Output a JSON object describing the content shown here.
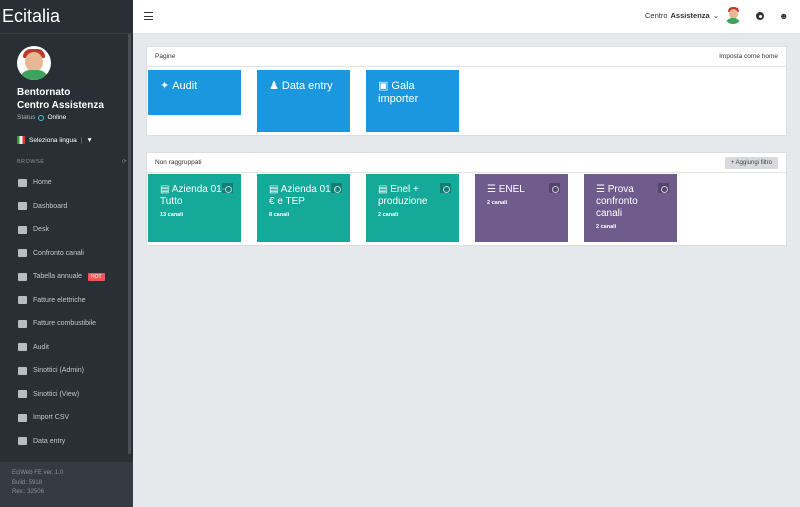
{
  "app": {
    "brand": "Ecitalia"
  },
  "profile": {
    "welcome": "Bentornato",
    "name": "Centro Assistenza",
    "status_label": "Status",
    "status_value": "Online"
  },
  "language": {
    "label": "Seleziona lingua",
    "caret": "▼"
  },
  "sidebar": {
    "section_label": "BROWSE",
    "items": [
      {
        "label": "Home",
        "icon": "home-icon"
      },
      {
        "label": "Dashboard",
        "icon": "dashboard-icon"
      },
      {
        "label": "Desk",
        "icon": "desktop-icon"
      },
      {
        "label": "Confronto canali",
        "icon": "compare-icon"
      },
      {
        "label": "Tabella annuale",
        "icon": "table-icon",
        "badge": "HOT"
      },
      {
        "label": "Fatture elettriche",
        "icon": "invoice-icon"
      },
      {
        "label": "Fatture combustibile",
        "icon": "invoice-icon"
      },
      {
        "label": "Audit",
        "icon": "puzzle-icon"
      },
      {
        "label": "Sinottici (Admin)",
        "icon": "image-icon"
      },
      {
        "label": "Sinottici (View)",
        "icon": "image-icon"
      },
      {
        "label": "Import CSV",
        "icon": "upload-icon"
      },
      {
        "label": "Data entry",
        "icon": "pencil-icon"
      }
    ]
  },
  "footer": {
    "version": "EciWeb FE ver. 1.0",
    "build": "Build: 5918",
    "rev": "Rev.: 32506"
  },
  "topbar": {
    "user_prefix": "Centro",
    "user_name": "Assistenza",
    "caret": "⌄"
  },
  "pages_panel": {
    "title": "Pagine",
    "action": "Imposta come home",
    "tiles": [
      {
        "label": "Audit",
        "icon": "puzzle-icon"
      },
      {
        "label": "Data entry",
        "icon": "person-icon"
      },
      {
        "label": "Gala importer",
        "icon": "money-icon"
      }
    ]
  },
  "groups_panel": {
    "title": "Non raggruppati",
    "action": "+ Aggiungi filtro",
    "tiles": [
      {
        "label": "Azienda 01-Tutto",
        "sub": "13 canali",
        "color": "#15a99a",
        "icon": "bar-chart-icon"
      },
      {
        "label": "Azienda 01 - € e TEP",
        "sub": "8 canali",
        "color": "#15a99a",
        "icon": "bar-chart-icon"
      },
      {
        "label": "Enel + produzione",
        "sub": "2 canali",
        "color": "#15a99a",
        "icon": "bar-chart-icon"
      },
      {
        "label": "ENEL",
        "sub": "2 canali",
        "color": "#6f5c8d",
        "icon": "list-icon"
      },
      {
        "label": "Prova confronto canali",
        "sub": "2 canali",
        "color": "#6f5c8d",
        "icon": "list-icon"
      }
    ]
  },
  "colors": {
    "sidebar_bg": "#2a2f35",
    "blue_tile": "#1a97df",
    "teal_tile": "#15a99a",
    "purple_tile": "#6f5c8d",
    "hot_badge": "#e9595a"
  }
}
